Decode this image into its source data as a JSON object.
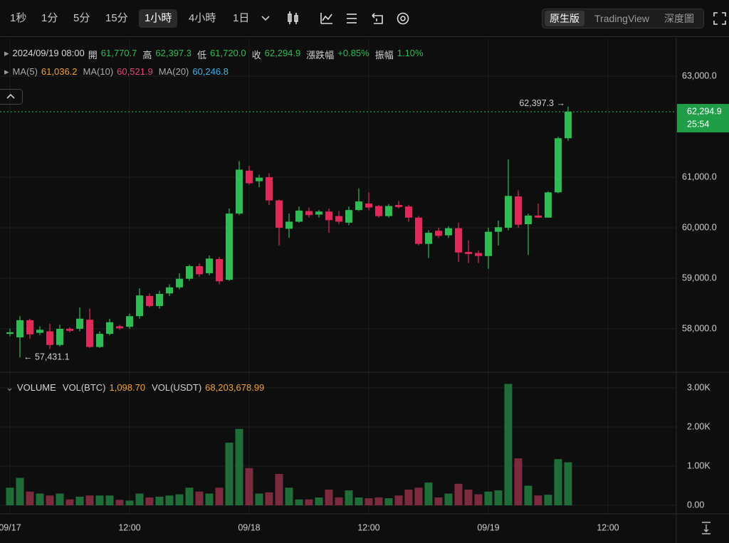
{
  "toolbar": {
    "intervals": [
      "1秒",
      "1分",
      "5分",
      "15分",
      "1小時",
      "4小時",
      "1日"
    ],
    "selected_interval": 4,
    "views": [
      "原生版",
      "TradingView",
      "深度圖"
    ],
    "selected_view": 0
  },
  "chart_data": {
    "type": "candlestick",
    "info": {
      "date": "2024/09/19 08:00",
      "fields": [
        {
          "label": "開",
          "value": "61,770.7"
        },
        {
          "label": "高",
          "value": "62,397.3"
        },
        {
          "label": "低",
          "value": "61,720.0"
        },
        {
          "label": "收",
          "value": "62,294.9"
        },
        {
          "label": "漲跌幅",
          "value": "+0.85%"
        },
        {
          "label": "振幅",
          "value": "1.10%"
        }
      ],
      "ma": [
        {
          "label": "MA(5)",
          "value": "61,036.2",
          "color": "#f0a33a"
        },
        {
          "label": "MA(10)",
          "value": "60,521.9",
          "color": "#e5457f"
        },
        {
          "label": "MA(20)",
          "value": "60,246.8",
          "color": "#3fb2e6"
        }
      ]
    },
    "open": [
      57900,
      57830,
      58170,
      57920,
      57950,
      57680,
      58000,
      58000,
      58180,
      57640,
      57900,
      58050,
      58040,
      58250,
      58650,
      58450,
      58700,
      58820,
      58990,
      59240,
      59100,
      59380,
      58970,
      60280,
      61130,
      60920,
      61000,
      60540,
      59980,
      60120,
      60330,
      60260,
      60320,
      60230,
      60100,
      60350,
      60480,
      60430,
      60230,
      60450,
      60420,
      60200,
      59680,
      59940,
      59850,
      59990,
      59520,
      59500,
      59440,
      59920,
      60000,
      60620,
      60070,
      60240,
      60200,
      60700,
      61770.7
    ],
    "high": [
      58000,
      58250,
      58200,
      58050,
      58100,
      58080,
      58030,
      58420,
      58400,
      57950,
      58200,
      58080,
      58300,
      58800,
      58700,
      58750,
      58880,
      59100,
      59270,
      59300,
      59450,
      59420,
      60380,
      61320,
      61220,
      61050,
      61080,
      60560,
      60280,
      60420,
      60400,
      60350,
      60380,
      60330,
      60420,
      60780,
      60700,
      60450,
      60470,
      60530,
      60450,
      60230,
      59950,
      60000,
      60030,
      60100,
      59750,
      59550,
      60000,
      60140,
      61350,
      60740,
      60280,
      60480,
      60720,
      61800,
      62397.3
    ],
    "low": [
      57850,
      57431.1,
      57800,
      57880,
      57600,
      57650,
      57930,
      57950,
      57620,
      57620,
      57870,
      57980,
      58000,
      58200,
      58420,
      58400,
      58650,
      58780,
      58950,
      59030,
      59060,
      58880,
      58950,
      60250,
      60850,
      60800,
      60450,
      59650,
      59800,
      60100,
      60200,
      60200,
      59900,
      60070,
      60050,
      60330,
      60350,
      60200,
      60200,
      60380,
      60120,
      59650,
      59400,
      59800,
      59800,
      59320,
      59300,
      59300,
      59190,
      59650,
      59950,
      60000,
      59460,
      60190,
      60200,
      60680,
      61720.0
    ],
    "close": [
      57930,
      58170,
      57890,
      57980,
      57680,
      58000,
      57960,
      58200,
      57640,
      57900,
      58130,
      58010,
      58250,
      58660,
      58450,
      58690,
      58820,
      58990,
      59240,
      59080,
      59390,
      58940,
      60280,
      61150,
      60880,
      60990,
      60540,
      60000,
      60120,
      60340,
      60250,
      60320,
      60150,
      60120,
      60350,
      60520,
      60400,
      60230,
      60430,
      60410,
      60200,
      59680,
      59900,
      59840,
      59990,
      59510,
      59480,
      59440,
      59920,
      60010,
      60630,
      60060,
      60240,
      60200,
      60700,
      61770.7,
      62294.9
    ],
    "up_color": "#2ebd55",
    "down_color": "#e0295a",
    "ylim": [
      57155,
      63732
    ],
    "yticks": [
      {
        "value": 63000,
        "label": "63,000.0"
      },
      {
        "value": 61000,
        "label": "61,000.0"
      },
      {
        "value": 60000,
        "label": "60,000.0"
      },
      {
        "value": 59000,
        "label": "59,000.0"
      },
      {
        "value": 58000,
        "label": "58,000.0"
      }
    ],
    "xlim": [
      -1,
      66.86
    ],
    "xticks": [
      {
        "value": 0,
        "label": "09/17"
      },
      {
        "value": 12,
        "label": "12:00"
      },
      {
        "value": 24,
        "label": "09/18"
      },
      {
        "value": 36,
        "label": "12:00"
      },
      {
        "value": 48,
        "label": "09/19"
      },
      {
        "value": 60,
        "label": "12:00"
      }
    ],
    "grid": true,
    "last_price": {
      "value": 62294.9,
      "label": "62,294.9",
      "countdown": "25:54"
    },
    "high_label": "62,397.3 →",
    "low_label": "← 57,431.1",
    "volume": {
      "title": "VOLUME",
      "fields": [
        {
          "label": "VOL(BTC)",
          "value": "1,098.70"
        },
        {
          "label": "VOL(USDT)",
          "value": "68,203,678.99"
        }
      ],
      "values": [
        450,
        700,
        350,
        300,
        250,
        300,
        150,
        220,
        250,
        250,
        250,
        140,
        120,
        300,
        200,
        220,
        250,
        280,
        450,
        350,
        300,
        450,
        1600,
        1950,
        950,
        300,
        330,
        800,
        450,
        150,
        150,
        200,
        400,
        200,
        380,
        200,
        180,
        200,
        180,
        250,
        400,
        450,
        580,
        200,
        300,
        550,
        400,
        280,
        350,
        380,
        3100,
        1200,
        500,
        250,
        270,
        1180,
        1098.7
      ],
      "up_color": "#1f6e3a",
      "down_color": "#7c2b3e",
      "ylim": [
        -218,
        3364
      ],
      "yticks": [
        {
          "value": 3000,
          "label": "3.00K"
        },
        {
          "value": 2000,
          "label": "2.00K"
        },
        {
          "value": 1000,
          "label": "1.00K"
        },
        {
          "value": 0,
          "label": "0.00"
        }
      ]
    }
  }
}
